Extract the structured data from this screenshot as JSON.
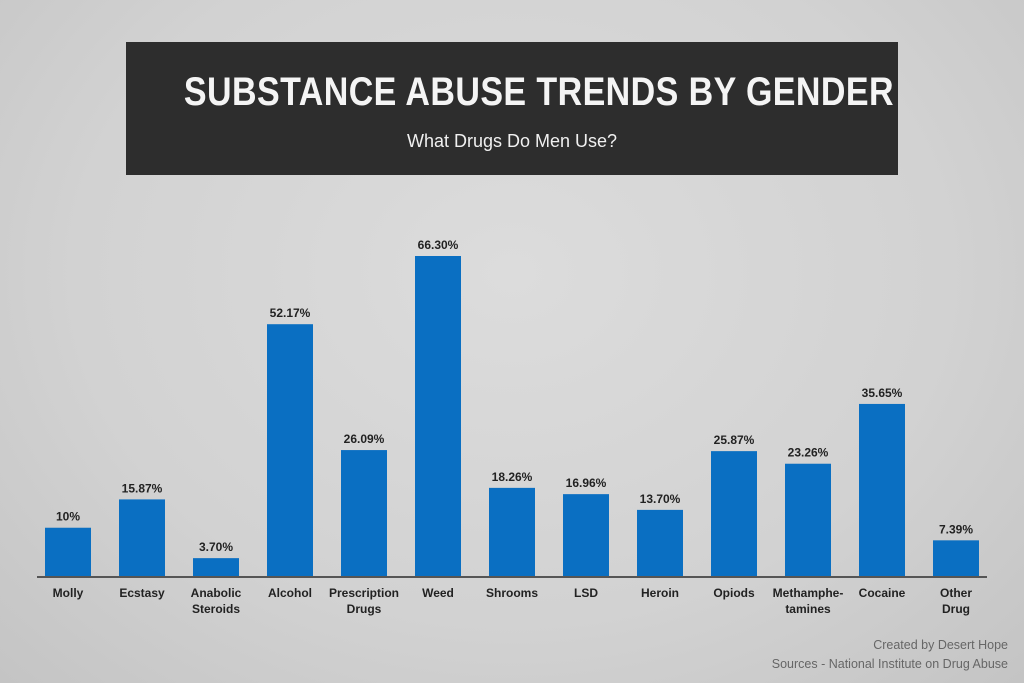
{
  "header": {
    "title": "SUBSTANCE ABUSE TRENDS BY GENDER",
    "subtitle": "What Drugs Do Men Use?"
  },
  "chart_data": {
    "type": "bar",
    "title": "SUBSTANCE ABUSE TRENDS BY GENDER",
    "subtitle": "What Drugs Do Men Use?",
    "categories": [
      [
        "Molly"
      ],
      [
        "Ecstasy"
      ],
      [
        "Anabolic",
        "Steroids"
      ],
      [
        "Alcohol"
      ],
      [
        "Prescription",
        "Drugs"
      ],
      [
        "Weed"
      ],
      [
        "Shrooms"
      ],
      [
        "LSD"
      ],
      [
        "Heroin"
      ],
      [
        "Opiods"
      ],
      [
        "Methamphe-",
        "tamines"
      ],
      [
        "Cocaine"
      ],
      [
        "Other",
        "Drug"
      ]
    ],
    "values": [
      10,
      15.87,
      3.7,
      52.17,
      26.09,
      66.3,
      18.26,
      16.96,
      13.7,
      25.87,
      23.26,
      35.65,
      7.39
    ],
    "labels": [
      "10%",
      "15.87%",
      "3.70%",
      "52.17%",
      "26.09%",
      "66.30%",
      "18.26%",
      "16.96%",
      "13.70%",
      "25.87%",
      "23.26%",
      "35.65%",
      "7.39%"
    ],
    "ylim": [
      0,
      66.3
    ],
    "grid": false,
    "bar_color": "#0a6fc2"
  },
  "credits": {
    "created_by": "Created by Desert Hope",
    "sources": "Sources - National Institute on Drug Abuse"
  }
}
